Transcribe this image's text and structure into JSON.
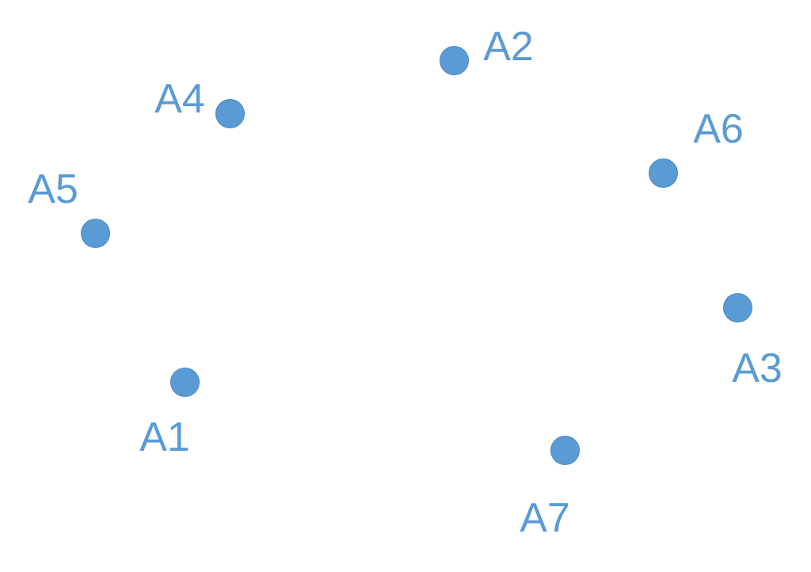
{
  "colors": {
    "point_fill": "#5b9bd5",
    "label_text": "#5b9bd5",
    "background": "#ffffff"
  },
  "points": [
    {
      "id": "A1",
      "label": "A1"
    },
    {
      "id": "A2",
      "label": "A2"
    },
    {
      "id": "A3",
      "label": "A3"
    },
    {
      "id": "A4",
      "label": "A4"
    },
    {
      "id": "A5",
      "label": "A5"
    },
    {
      "id": "A6",
      "label": "A6"
    },
    {
      "id": "A7",
      "label": "A7"
    }
  ]
}
